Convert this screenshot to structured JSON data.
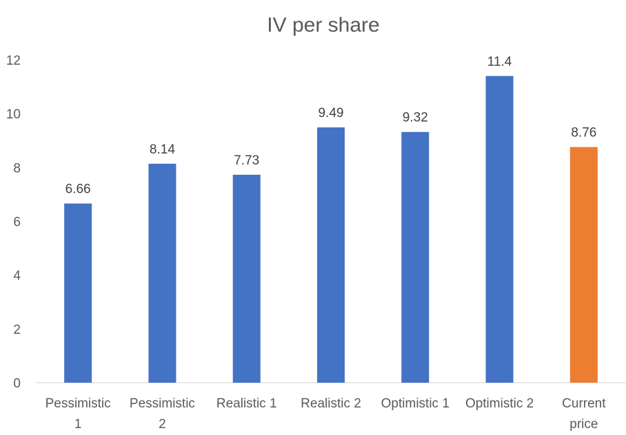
{
  "chart_data": {
    "type": "bar",
    "title": "IV per share",
    "xlabel": "",
    "ylabel": "",
    "ylim": [
      0,
      12
    ],
    "yticks": [
      0,
      2,
      4,
      6,
      8,
      10,
      12
    ],
    "ytick_labels": [
      "0",
      "2",
      "4",
      "6",
      "8",
      "10",
      "12"
    ],
    "grid": false,
    "categories": [
      [
        "Pessimistic",
        "1"
      ],
      [
        "Pessimistic",
        "2"
      ],
      [
        "Realistic 1"
      ],
      [
        "Realistic 2"
      ],
      [
        "Optimistic 1"
      ],
      [
        "Optimistic 2"
      ],
      [
        "Current",
        "price"
      ]
    ],
    "values": [
      6.66,
      8.14,
      7.73,
      9.49,
      9.32,
      11.4,
      8.76
    ],
    "value_labels": [
      "6.66",
      "8.14",
      "7.73",
      "9.49",
      "9.32",
      "11.4",
      "8.76"
    ],
    "colors": [
      "#4472C4",
      "#4472C4",
      "#4472C4",
      "#4472C4",
      "#4472C4",
      "#4472C4",
      "#ED7D31"
    ]
  }
}
